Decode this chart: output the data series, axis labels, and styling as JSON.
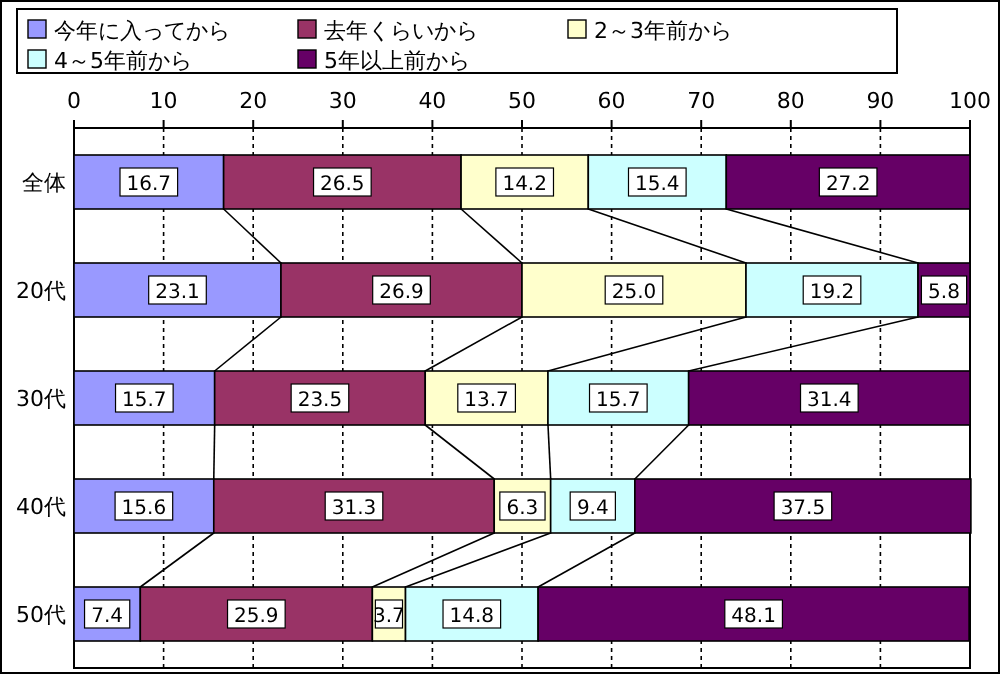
{
  "chart_data": {
    "type": "bar",
    "orientation": "horizontal",
    "stacked": true,
    "categories": [
      "全体",
      "20代",
      "30代",
      "40代",
      "50代"
    ],
    "series": [
      {
        "name": "今年に入ってから",
        "color": "#9999ff",
        "values": [
          16.7,
          23.1,
          15.7,
          15.6,
          7.4
        ],
        "value_labels": [
          "16.7",
          "23.1",
          "15.7",
          "15.6",
          "7.4"
        ]
      },
      {
        "name": "去年くらいから",
        "color": "#993366",
        "values": [
          26.5,
          26.9,
          23.5,
          31.3,
          25.9
        ],
        "value_labels": [
          "26.5",
          "26.9",
          "23.5",
          "31.3",
          "25.9"
        ]
      },
      {
        "name": "2～3年前から",
        "color": "#ffffcc",
        "values": [
          14.2,
          25.0,
          13.7,
          6.3,
          3.7
        ],
        "value_labels": [
          "14.2",
          "25.0",
          "13.7",
          "6.3",
          "3.7"
        ]
      },
      {
        "name": "4～5年前から",
        "color": "#ccffff",
        "values": [
          15.4,
          19.2,
          15.7,
          9.4,
          14.8
        ],
        "value_labels": [
          "15.4",
          "19.2",
          "15.7",
          "9.4",
          "14.8"
        ]
      },
      {
        "name": "5年以上前から",
        "color": "#660066",
        "values": [
          27.2,
          5.8,
          31.4,
          37.5,
          48.1
        ],
        "value_labels": [
          "27.2",
          "5.8",
          "31.4",
          "37.5",
          "48.1"
        ]
      }
    ],
    "xlim": [
      0,
      100
    ],
    "xticks": [
      0,
      10,
      20,
      30,
      40,
      50,
      60,
      70,
      80,
      90,
      100
    ],
    "grid": "x",
    "legend": "top"
  }
}
